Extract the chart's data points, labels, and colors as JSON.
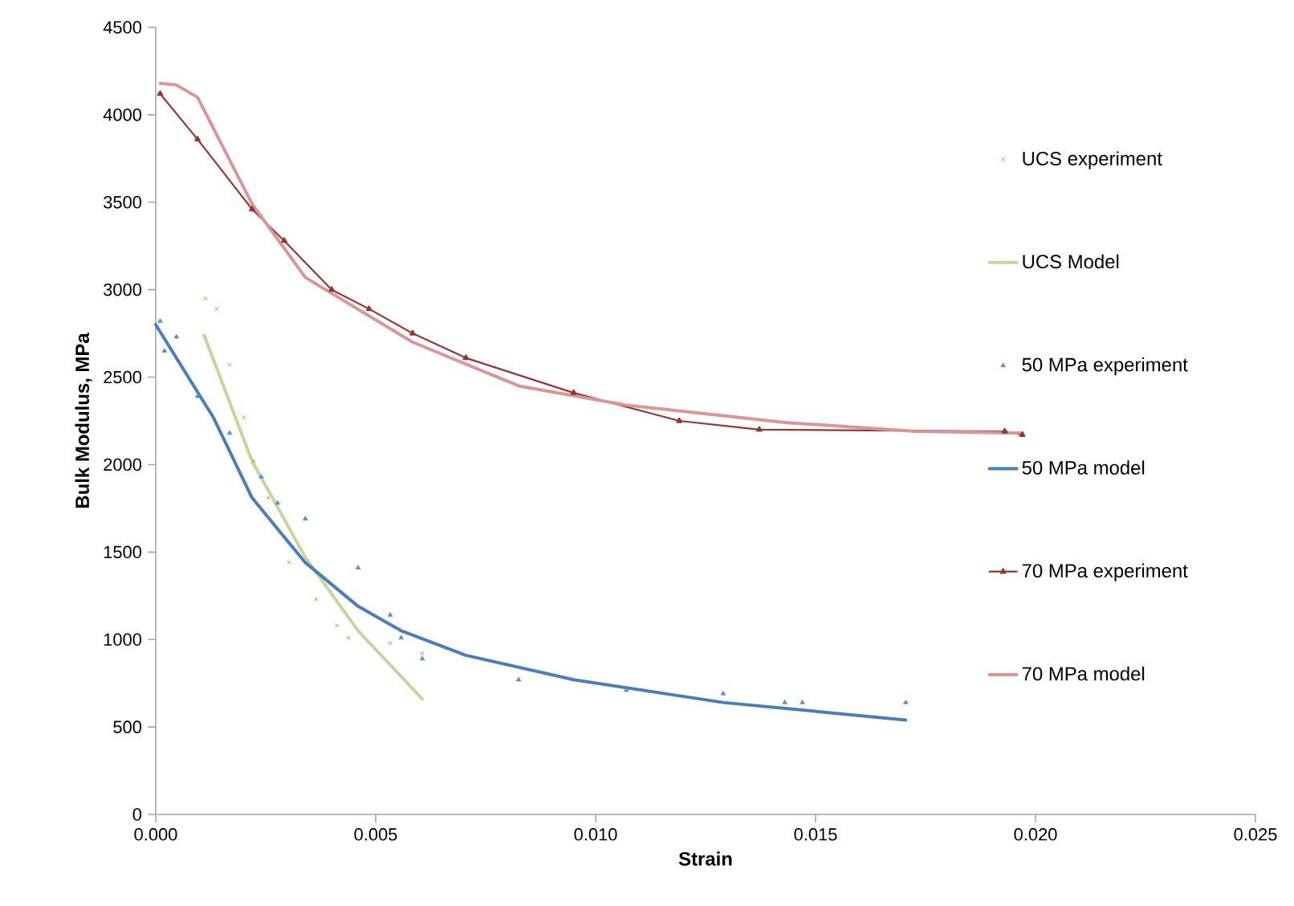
{
  "chart_data": {
    "type": "line",
    "xlabel": "Strain",
    "ylabel": "Bulk Modulus, MPa",
    "xlim": [
      0,
      0.025
    ],
    "xticks": [
      {
        "value": 0,
        "label": "0.000"
      },
      {
        "value": 0.005,
        "label": "0.005"
      },
      {
        "value": 0.01,
        "label": "0.010"
      },
      {
        "value": 0.015,
        "label": "0.015"
      },
      {
        "value": 0.02,
        "label": "0.020"
      },
      {
        "value": 0.025,
        "label": "0.025"
      }
    ],
    "ylim": [
      0,
      4500
    ],
    "yticks": [
      0,
      500,
      1000,
      1500,
      2000,
      2500,
      3000,
      3500,
      4000,
      4500
    ],
    "grid": false,
    "legend": "right",
    "line_style": "solid",
    "series": [
      {
        "name": "UCS experiment",
        "type": "scatter",
        "marker": "cross",
        "color": "#77933c",
        "x": [
          0.00113,
          0.00139,
          0.00168,
          0.002,
          0.00223,
          0.00256,
          0.00303,
          0.00365,
          0.00412,
          0.00438,
          0.00533,
          0.00606
        ],
        "values": [
          2950,
          2890,
          2570,
          2270,
          2020,
          1810,
          1440,
          1230,
          1080,
          1010,
          980,
          920
        ]
      },
      {
        "name": "UCS Model",
        "color": "#c3d69b",
        "x": [
          0.0011,
          0.00219,
          0.0034,
          0.0046,
          0.00606
        ],
        "values": [
          2740,
          2020,
          1470,
          1050,
          660
        ]
      },
      {
        "name": "50 MPa experiment",
        "type": "scatter",
        "marker": "triangle",
        "color": "#558ed5",
        "x": [
          0.0001,
          0.00047,
          0.0002,
          0.00095,
          0.00168,
          0.0024,
          0.00277,
          0.0034,
          0.0046,
          0.00533,
          0.00558,
          0.00606,
          0.00825,
          0.0107,
          0.0129,
          0.0143,
          0.0147,
          0.01705
        ],
        "values": [
          2820,
          2730,
          2650,
          2390,
          2180,
          1930,
          1780,
          1690,
          1410,
          1140,
          1010,
          890,
          770,
          710,
          690,
          640,
          640,
          640
        ]
      },
      {
        "name": "50 MPa model",
        "color": "#4a7ebb",
        "x": [
          0.0,
          0.00131,
          0.00219,
          0.0034,
          0.0046,
          0.00558,
          0.00705,
          0.0095,
          0.0129,
          0.01705
        ],
        "values": [
          2800,
          2270,
          1810,
          1440,
          1190,
          1050,
          910,
          770,
          640,
          540
        ]
      },
      {
        "name": "70 MPa experiment",
        "marker": "triangle",
        "color": "#953735",
        "x": [
          0.0001,
          0.00095,
          0.00219,
          0.00292,
          0.004,
          0.00485,
          0.00584,
          0.00705,
          0.0095,
          0.0119,
          0.01372,
          0.0193,
          0.0197
        ],
        "values": [
          4120,
          3860,
          3460,
          3280,
          3000,
          2890,
          2750,
          2610,
          2410,
          2250,
          2200,
          2190,
          2170
        ]
      },
      {
        "name": "70 MPa model",
        "color": "#d99694",
        "x": [
          0.0001,
          0.00047,
          0.00095,
          0.00219,
          0.0034,
          0.00584,
          0.00825,
          0.0107,
          0.01435,
          0.01727,
          0.0197
        ],
        "values": [
          4180,
          4170,
          4100,
          3490,
          3070,
          2700,
          2450,
          2340,
          2240,
          2190,
          2180
        ]
      }
    ]
  }
}
